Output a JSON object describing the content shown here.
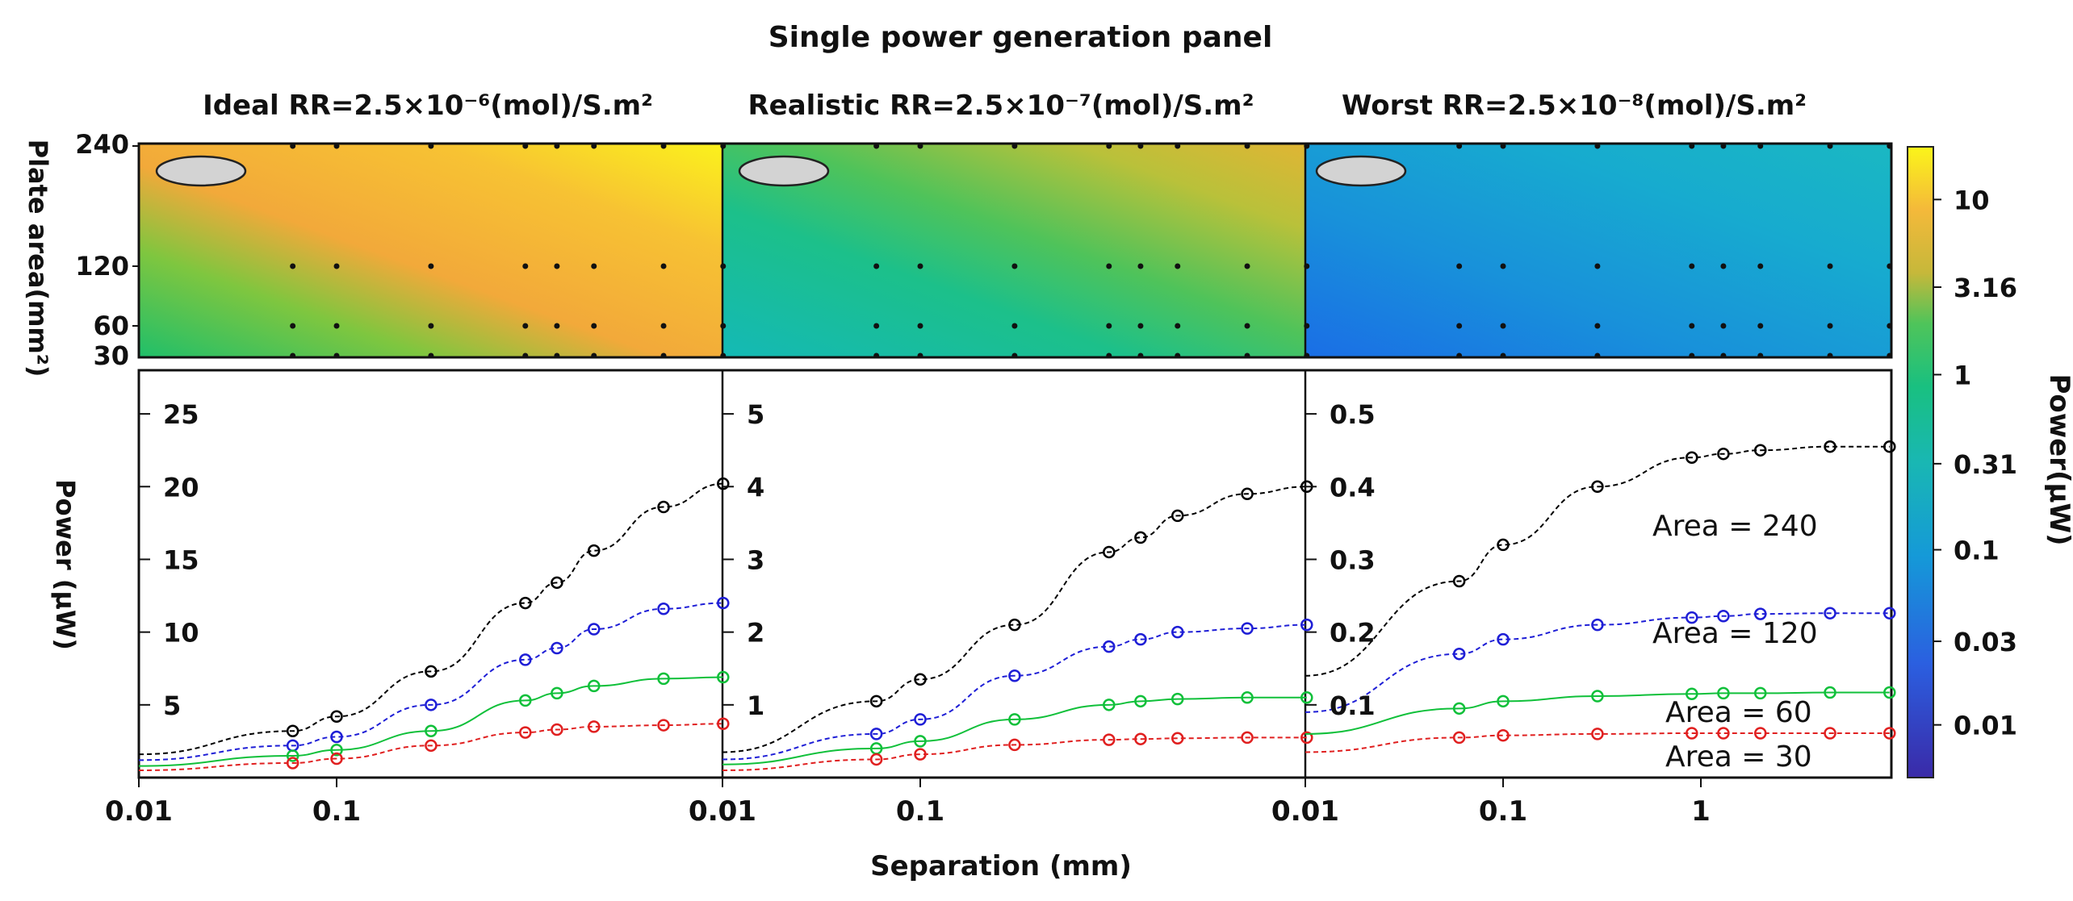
{
  "chart_data": {
    "type": "line",
    "title": "Single power generation panel",
    "xlabel": "Separation (mm)",
    "x_tick_labels": [
      "0.01",
      "0.1",
      "1"
    ],
    "heatmap_ylabel": "Plate area(mm²)",
    "heatmap_y_ticks": [
      "240",
      "120",
      "60",
      "30"
    ],
    "colorbar": {
      "label": "Power(μW)",
      "ticks": [
        "10",
        "3.16",
        "1",
        "0.31",
        "0.1",
        "0.03",
        "0.01"
      ]
    },
    "line_ylabel": "Power (μW)",
    "separation_mm": [
      0.01,
      0.06,
      0.1,
      0.3,
      0.9,
      1.3,
      2,
      4.5,
      9
    ],
    "panels": [
      {
        "title": "Ideal RR=2.5×10⁻⁶(mol)/S.m²",
        "y_ticks": [
          "25",
          "20",
          "15",
          "10",
          "5"
        ],
        "ylim": [
          0,
          28
        ],
        "series": [
          {
            "name": "Area = 240",
            "color": "#000000",
            "values": [
              1.6,
              3.2,
              4.2,
              7.3,
              12.0,
              13.4,
              15.6,
              18.6,
              20.2
            ]
          },
          {
            "name": "Area = 120",
            "color": "#1f1fd6",
            "values": [
              1.2,
              2.2,
              2.8,
              5.0,
              8.1,
              8.9,
              10.2,
              11.6,
              12.0
            ]
          },
          {
            "name": "Area = 60",
            "color": "#10c03a",
            "values": [
              0.8,
              1.5,
              1.9,
              3.2,
              5.3,
              5.8,
              6.3,
              6.8,
              6.9
            ]
          },
          {
            "name": "Area = 30",
            "color": "#e02020",
            "values": [
              0.5,
              1.0,
              1.3,
              2.2,
              3.1,
              3.3,
              3.5,
              3.6,
              3.7
            ]
          }
        ]
      },
      {
        "title": "Realistic RR=2.5×10⁻⁷(mol)/S.m²",
        "y_ticks": [
          "5",
          "4",
          "3",
          "2",
          "1"
        ],
        "ylim": [
          0,
          5.6
        ],
        "series": [
          {
            "name": "Area = 240",
            "color": "#000000",
            "values": [
              0.35,
              1.05,
              1.35,
              2.1,
              3.1,
              3.3,
              3.6,
              3.9,
              4.0
            ]
          },
          {
            "name": "Area = 120",
            "color": "#1f1fd6",
            "values": [
              0.25,
              0.6,
              0.8,
              1.4,
              1.8,
              1.9,
              2.0,
              2.05,
              2.1
            ]
          },
          {
            "name": "Area = 60",
            "color": "#10c03a",
            "values": [
              0.18,
              0.4,
              0.5,
              0.8,
              1.0,
              1.05,
              1.08,
              1.1,
              1.1
            ]
          },
          {
            "name": "Area = 30",
            "color": "#e02020",
            "values": [
              0.1,
              0.25,
              0.32,
              0.45,
              0.52,
              0.53,
              0.54,
              0.55,
              0.55
            ]
          }
        ]
      },
      {
        "title": "Worst RR=2.5×10⁻⁸(mol)/S.m²",
        "y_ticks": [
          "0.5",
          "0.4",
          "0.3",
          "0.2",
          "0.1"
        ],
        "ylim": [
          0,
          0.56
        ],
        "series": [
          {
            "name": "Area = 240",
            "color": "#000000",
            "values": [
              0.14,
              0.27,
              0.32,
              0.4,
              0.44,
              0.445,
              0.45,
              0.455,
              0.455
            ]
          },
          {
            "name": "Area = 120",
            "color": "#1f1fd6",
            "values": [
              0.09,
              0.17,
              0.19,
              0.21,
              0.22,
              0.222,
              0.225,
              0.226,
              0.226
            ]
          },
          {
            "name": "Area = 60",
            "color": "#10c03a",
            "values": [
              0.06,
              0.095,
              0.105,
              0.112,
              0.115,
              0.116,
              0.116,
              0.117,
              0.117
            ]
          },
          {
            "name": "Area = 30",
            "color": "#e02020",
            "values": [
              0.035,
              0.055,
              0.058,
              0.06,
              0.061,
              0.061,
              0.061,
              0.061,
              0.061
            ]
          }
        ]
      }
    ],
    "area_labels": [
      "Area = 240",
      "Area = 120",
      "Area = 60",
      "Area = 30"
    ]
  }
}
